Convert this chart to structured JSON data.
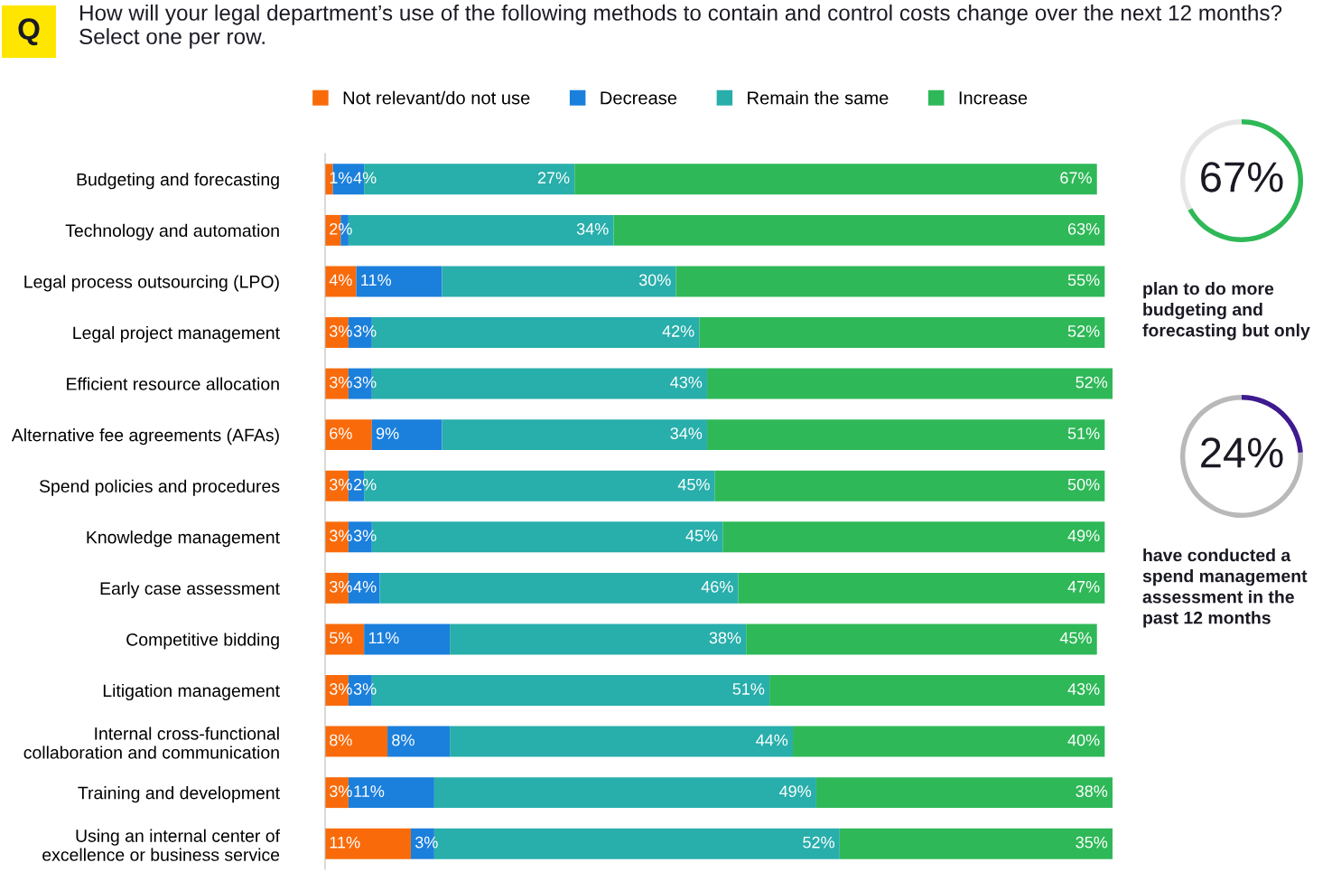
{
  "chart_data": [
    {
      "type": "bar",
      "orientation": "horizontal",
      "stacked": true,
      "title": "How will your legal department’s use of the following methods to contain and control costs change over the next 12 months? Select one per row.",
      "annotations": [
        "Q"
      ],
      "legend": "top",
      "categories": [
        "Budgeting and forecasting",
        "Technology and automation",
        "Legal process outsourcing (LPO)",
        "Legal project management",
        "Efficient resource allocation",
        "Alternative fee agreements (AFAs)",
        "Spend policies and procedures",
        "Knowledge management",
        "Early case assessment",
        "Competitive bidding",
        "Litigation management",
        "Internal cross-functional\ncollaboration and communication",
        "Training and development",
        "Using an internal center of\nexcellence or business service"
      ],
      "series": [
        {
          "name": "Not relevant/do not use",
          "color": "#f96b0a",
          "values": [
            1,
            2,
            4,
            3,
            3,
            6,
            3,
            3,
            3,
            5,
            3,
            8,
            3,
            11
          ],
          "value_labels": [
            "1%",
            "2%",
            "4%",
            "3%",
            "3%",
            "6%",
            "3%",
            "3%",
            "3%",
            "5%",
            "3%",
            "8%",
            "3%",
            "11%"
          ]
        },
        {
          "name": "Decrease",
          "color": "#1b7fdc",
          "values": [
            4,
            1,
            11,
            3,
            3,
            9,
            2,
            3,
            4,
            11,
            3,
            8,
            11,
            3
          ],
          "value_labels": [
            "4%",
            null,
            "11%",
            "3%",
            "3%",
            "9%",
            "2%",
            "3%",
            "4%",
            "11%",
            "3%",
            "8%",
            "11%",
            "3%"
          ]
        },
        {
          "name": "Remain the same",
          "color": "#28aeab",
          "values": [
            27,
            34,
            30,
            42,
            43,
            34,
            45,
            45,
            46,
            38,
            51,
            44,
            49,
            52
          ],
          "value_labels": [
            "27%",
            "34%",
            "30%",
            "42%",
            "43%",
            "34%",
            "45%",
            "45%",
            "46%",
            "38%",
            "51%",
            "44%",
            "49%",
            "52%"
          ]
        },
        {
          "name": "Increase",
          "color": "#2fb858",
          "values": [
            67,
            63,
            55,
            52,
            52,
            51,
            50,
            49,
            47,
            45,
            43,
            40,
            38,
            35
          ],
          "value_labels": [
            "67%",
            "63%",
            "55%",
            "52%",
            "52%",
            "51%",
            "50%",
            "49%",
            "47%",
            "45%",
            "43%",
            "40%",
            "38%",
            "35%"
          ]
        }
      ]
    },
    {
      "type": "donut",
      "categories": [
        null,
        null
      ],
      "values": [
        67,
        33
      ],
      "colors": [
        "#2fb858",
        "#e6e6e6"
      ],
      "value_labels": [
        "67%",
        null
      ],
      "annotations": [
        "plan to do more\nbudgeting and\nforecasting but only"
      ]
    },
    {
      "type": "donut",
      "categories": [
        null,
        null
      ],
      "values": [
        24,
        76
      ],
      "colors": [
        "#3f1a8f",
        "#b9b9b9"
      ],
      "value_labels": [
        "24%",
        null
      ],
      "annotations": [
        "have conducted a\nspend management\nassessment in the\npast 12 months"
      ]
    }
  ]
}
